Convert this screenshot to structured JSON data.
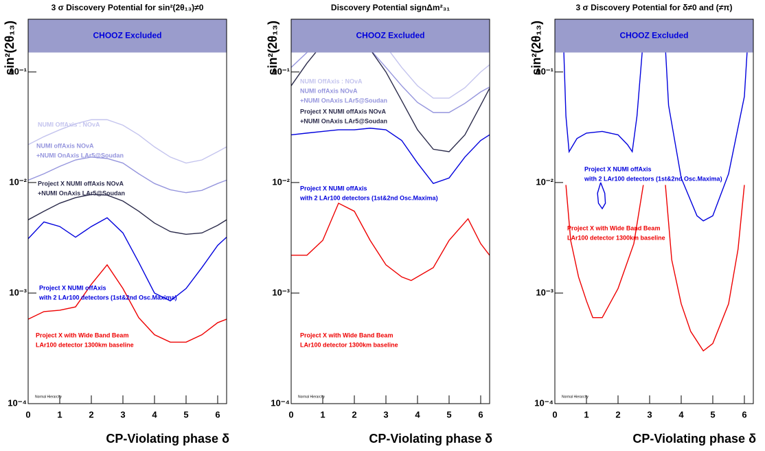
{
  "chart_data": [
    {
      "type": "line",
      "title": "3 σ Discovery Potential for sin²(2θ₁₃)≠0",
      "x_label": "CP-Violating phase δ",
      "y_label": "sin²(2θ₁₃)",
      "log_y": true,
      "xlim": [
        0,
        6.2832
      ],
      "ylim": [
        0.0001,
        0.3
      ],
      "xticks": [
        0,
        1,
        2,
        3,
        4,
        5,
        6
      ],
      "yticks": [
        {
          "value": 0.0001,
          "label": "10⁻⁴"
        },
        {
          "value": 0.001,
          "label": "10⁻³"
        },
        {
          "value": 0.01,
          "label": "10⁻²"
        },
        {
          "value": 0.1,
          "label": "10⁻¹"
        }
      ],
      "band": {
        "label": "CHOOZ Excluded",
        "range": [
          0.15,
          0.3
        ],
        "color": "#9a9ccc"
      },
      "note": "Normal Hierarchy",
      "series": [
        {
          "name": [
            "NUMI OffAxis : NOvA"
          ],
          "color": "#c4c4ee",
          "x": [
            0,
            0.5,
            1,
            1.5,
            2,
            2.5,
            3,
            3.5,
            4,
            4.5,
            5,
            5.5,
            6,
            6.28
          ],
          "values": [
            0.022,
            0.026,
            0.03,
            0.034,
            0.037,
            0.037,
            0.033,
            0.027,
            0.021,
            0.017,
            0.015,
            0.016,
            0.019,
            0.021
          ]
        },
        {
          "name": [
            "NUMI offAxis NOvA",
            "+NUMI OnAxis LAr5@Soudan"
          ],
          "color": "#9595dd",
          "x": [
            0,
            0.5,
            1,
            1.5,
            2,
            2.5,
            3,
            3.5,
            4,
            4.5,
            5,
            5.5,
            6,
            6.28
          ],
          "values": [
            0.0105,
            0.012,
            0.014,
            0.016,
            0.017,
            0.0165,
            0.015,
            0.012,
            0.0098,
            0.0086,
            0.0081,
            0.0085,
            0.0098,
            0.0105
          ]
        },
        {
          "name": [
            "Project X NUMI offAxis NOvA",
            "+NUMI OnAxis LAr5@Soudan"
          ],
          "color": "#2a2a4a",
          "x": [
            0,
            0.5,
            1,
            1.5,
            2,
            2.5,
            3,
            3.5,
            4,
            4.5,
            5,
            5.5,
            6,
            6.28
          ],
          "values": [
            0.0046,
            0.0055,
            0.0065,
            0.0073,
            0.0078,
            0.0077,
            0.0068,
            0.0055,
            0.0043,
            0.0036,
            0.0034,
            0.0035,
            0.0041,
            0.0046
          ]
        },
        {
          "name": [
            "Project X NUMI offAxis",
            "with 2 LAr100 detectors (1st&2nd Osc.Maxima)"
          ],
          "color": "#0000dd",
          "x": [
            0,
            0.5,
            1,
            1.5,
            2,
            2.5,
            3,
            3.5,
            4,
            4.5,
            5,
            5.5,
            6,
            6.28
          ],
          "values": [
            0.0031,
            0.0044,
            0.004,
            0.0032,
            0.004,
            0.0048,
            0.0035,
            0.0019,
            0.001,
            0.00085,
            0.0011,
            0.0017,
            0.0027,
            0.0032
          ]
        },
        {
          "name": [
            "Project X with Wide Band Beam",
            "LAr100 detector 1300km baseline"
          ],
          "color": "#ee0000",
          "x": [
            0,
            0.5,
            1,
            1.5,
            2,
            2.5,
            3,
            3.5,
            4,
            4.5,
            5,
            5.5,
            6,
            6.28
          ],
          "values": [
            0.00058,
            0.00068,
            0.0007,
            0.00075,
            0.0012,
            0.0018,
            0.0011,
            0.0006,
            0.00042,
            0.00036,
            0.00036,
            0.00042,
            0.00054,
            0.00058
          ]
        }
      ]
    },
    {
      "type": "line",
      "title": "Discovery Potential signΔm²₃₁",
      "x_label": "CP-Violating phase δ",
      "y_label": "sin²(2θ₁₃)",
      "log_y": true,
      "xlim": [
        0,
        6.2832
      ],
      "ylim": [
        0.0001,
        0.3
      ],
      "xticks": [
        0,
        1,
        2,
        3,
        4,
        5,
        6
      ],
      "yticks": [
        {
          "value": 0.0001,
          "label": "10⁻⁴"
        },
        {
          "value": 0.001,
          "label": "10⁻³"
        },
        {
          "value": 0.01,
          "label": "10⁻²"
        },
        {
          "value": 0.1,
          "label": "10⁻¹"
        }
      ],
      "band": {
        "label": "CHOOZ Excluded",
        "range": [
          0.15,
          0.3
        ],
        "color": "#9a9ccc"
      },
      "note": "Normal Hierarchy",
      "series": [
        {
          "name": [
            "NUMI OffAxis : NOvA"
          ],
          "color": "#c4c4ee",
          "x": [
            0,
            0.5,
            1,
            1.5,
            2,
            2.5,
            3,
            3.5,
            4,
            4.5,
            5,
            5.5,
            6,
            6.28
          ],
          "values": [
            0.2,
            0.3,
            0.4,
            0.4,
            0.35,
            0.25,
            0.17,
            0.11,
            0.075,
            0.058,
            0.058,
            0.072,
            0.1,
            0.116
          ]
        },
        {
          "name": [
            "NUMI offAxis NOvA",
            "+NUMI OnAxis LAr5@Soudan"
          ],
          "color": "#9595dd",
          "x": [
            0,
            0.5,
            1,
            1.5,
            2,
            2.5,
            3,
            3.5,
            4,
            4.5,
            5,
            5.5,
            6,
            6.28
          ],
          "values": [
            0.11,
            0.15,
            0.2,
            0.22,
            0.2,
            0.16,
            0.11,
            0.075,
            0.053,
            0.043,
            0.043,
            0.052,
            0.066,
            0.073
          ]
        },
        {
          "name": [
            "Project X NUMI offAxis NOvA",
            "+NUMI OnAxis LAr5@Soudan"
          ],
          "color": "#2a2a4a",
          "x": [
            0,
            0.5,
            1,
            1.5,
            2,
            2.5,
            3,
            3.5,
            4,
            4.5,
            5,
            5.5,
            6,
            6.28
          ],
          "values": [
            0.075,
            0.12,
            0.18,
            0.21,
            0.2,
            0.16,
            0.1,
            0.055,
            0.03,
            0.02,
            0.019,
            0.027,
            0.05,
            0.071
          ]
        },
        {
          "name": [
            "Project X NUMI offAxis",
            "with 2 LAr100 detectors (1st&2nd Osc.Maxima)"
          ],
          "color": "#0000dd",
          "x": [
            0,
            0.5,
            1,
            1.5,
            2,
            2.5,
            3,
            3.5,
            4,
            4.5,
            5,
            5.5,
            6,
            6.28
          ],
          "values": [
            0.027,
            0.028,
            0.029,
            0.03,
            0.03,
            0.031,
            0.03,
            0.024,
            0.015,
            0.0098,
            0.011,
            0.017,
            0.024,
            0.027
          ]
        },
        {
          "name": [
            "Project X with Wide Band Beam",
            "LAr100 detector 1300km baseline"
          ],
          "color": "#ee0000",
          "x": [
            0,
            0.5,
            1,
            1.5,
            2,
            2.5,
            3,
            3.5,
            3.8,
            4.5,
            5,
            5.6,
            6,
            6.28
          ],
          "values": [
            0.0022,
            0.0022,
            0.003,
            0.0065,
            0.0055,
            0.003,
            0.0018,
            0.0014,
            0.0013,
            0.0017,
            0.003,
            0.0047,
            0.0028,
            0.0022
          ]
        }
      ]
    },
    {
      "type": "line",
      "title": "3 σ Discovery Potential for δ≠0 and (≠π)",
      "x_label": "CP-Violating phase δ",
      "y_label": "sin²(2θ₁₃)",
      "log_y": true,
      "xlim": [
        0,
        6.2832
      ],
      "ylim": [
        0.0001,
        0.3
      ],
      "xticks": [
        0,
        1,
        2,
        3,
        4,
        5,
        6
      ],
      "yticks": [
        {
          "value": 0.0001,
          "label": "10⁻⁴"
        },
        {
          "value": 0.001,
          "label": "10⁻³"
        },
        {
          "value": 0.01,
          "label": "10⁻²"
        },
        {
          "value": 0.1,
          "label": "10⁻¹"
        }
      ],
      "band": {
        "label": "CHOOZ Excluded",
        "range": [
          0.15,
          0.3
        ],
        "color": "#9a9ccc"
      },
      "note": "Normal Hierarchy",
      "series": [
        {
          "name": [
            "Project X NUMI offAxis",
            "with 2 LAr100 detectors (1st&2nd Osc.Maxima)"
          ],
          "color": "#0000dd",
          "x": [
            0.25,
            0.35,
            0.45,
            0.7,
            1,
            1.5,
            2,
            2.3,
            2.45,
            2.6,
            2.85,
            null,
            3.45,
            3.6,
            4,
            4.5,
            4.7,
            5,
            5.5,
            6,
            6.15,
            null,
            1.45,
            1.35,
            1.38,
            1.5,
            1.6,
            1.58,
            1.45
          ],
          "values": [
            0.3,
            0.04,
            0.019,
            0.025,
            0.028,
            0.029,
            0.027,
            0.022,
            0.019,
            0.04,
            0.3,
            null,
            0.3,
            0.05,
            0.011,
            0.005,
            0.0045,
            0.005,
            0.012,
            0.06,
            0.3,
            null,
            0.01,
            0.008,
            0.0065,
            0.0058,
            0.0065,
            0.008,
            0.01
          ]
        },
        {
          "name": [
            "Project X with Wide Band Beam",
            "LAr100 detector 1300km baseline"
          ],
          "color": "#ee0000",
          "x": [
            0.35,
            0.5,
            0.75,
            1,
            1.2,
            1.5,
            2,
            2.5,
            2.8,
            null,
            3.5,
            3.7,
            4,
            4.3,
            4.7,
            5,
            5.5,
            5.8,
            6
          ],
          "values": [
            0.0095,
            0.003,
            0.0014,
            0.00085,
            0.0006,
            0.0006,
            0.0011,
            0.0028,
            0.0095,
            null,
            0.0095,
            0.002,
            0.0008,
            0.00045,
            0.0003,
            0.00035,
            0.0008,
            0.0025,
            0.0095
          ]
        }
      ]
    }
  ]
}
